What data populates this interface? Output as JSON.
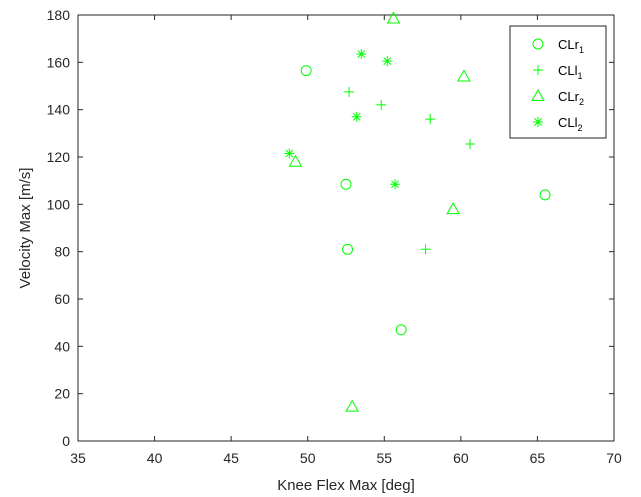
{
  "chart_data": {
    "type": "scatter",
    "xlabel": "Knee Flex Max [deg]",
    "ylabel": "Velocity Max [m/s]",
    "xlim": [
      35,
      70
    ],
    "ylim": [
      0,
      180
    ],
    "xticks": [
      "35",
      "40",
      "45",
      "50",
      "55",
      "60",
      "65",
      "70"
    ],
    "yticks": [
      "0",
      "20",
      "40",
      "60",
      "80",
      "100",
      "120",
      "140",
      "160",
      "180"
    ],
    "grid": false,
    "legend_position": "top-right",
    "color": "#00ff00",
    "series": [
      {
        "name": "CLr",
        "subscript": "1",
        "marker": "circle",
        "x": [
          49.9,
          52.5,
          52.6,
          56.1,
          65.5
        ],
        "y": [
          156.5,
          108.5,
          81,
          47,
          104
        ]
      },
      {
        "name": "CLl",
        "subscript": "1",
        "marker": "plus",
        "x": [
          52.7,
          54.8,
          58,
          60.6,
          57.7
        ],
        "y": [
          147.5,
          142,
          136,
          125.5,
          81
        ]
      },
      {
        "name": "CLr",
        "subscript": "2",
        "marker": "triangle",
        "x": [
          55.6,
          60.2,
          49.2,
          59.5,
          52.9
        ],
        "y": [
          178.5,
          154,
          118,
          98,
          14.5
        ]
      },
      {
        "name": "CLl",
        "subscript": "2",
        "marker": "asterisk",
        "x": [
          53.5,
          55.2,
          53.2,
          48.8,
          55.7
        ],
        "y": [
          163.5,
          160.5,
          137,
          121.5,
          108.5
        ]
      }
    ]
  }
}
